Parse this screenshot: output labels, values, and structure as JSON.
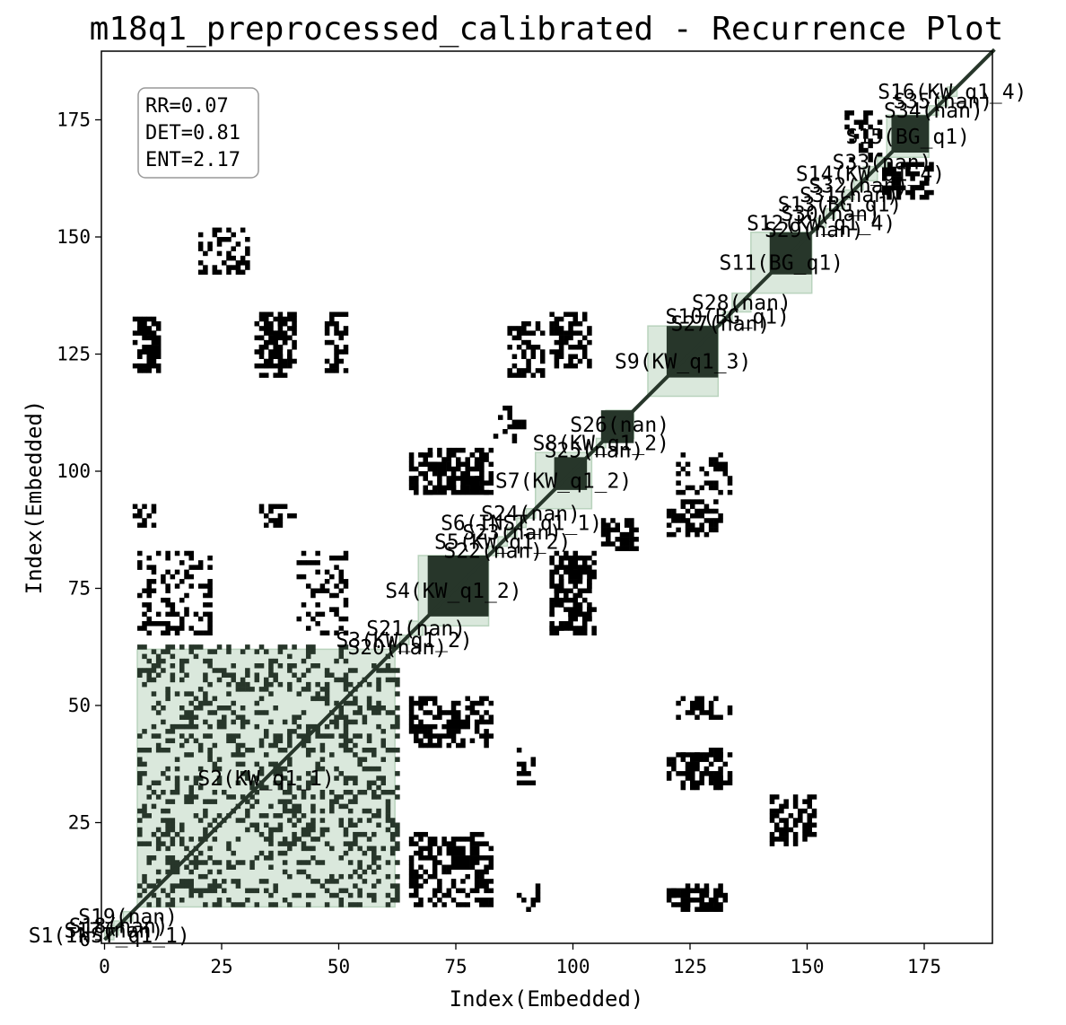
{
  "chart_data": {
    "type": "heatmap",
    "title": "m18q1_preprocessed_calibrated - Recurrence Plot",
    "xlabel": "Index(Embedded)",
    "ylabel": "Index(Embedded)",
    "xlim": [
      0,
      190
    ],
    "ylim": [
      0,
      190
    ],
    "x_ticks": [
      0,
      25,
      50,
      75,
      100,
      125,
      150,
      175
    ],
    "y_ticks": [
      0,
      25,
      50,
      75,
      100,
      125,
      150,
      175
    ],
    "stats": [
      "RR=0.07",
      "DET=0.81",
      "ENT=2.17"
    ],
    "colors": {
      "recurrence": "#000000",
      "segment_fill": "#d6e6d8",
      "segment_edge": "#b9d3bd",
      "segment_block": "#27362a"
    },
    "segments": [
      {
        "label": "S1(INST_q1_1)",
        "start": 0,
        "end": 2
      },
      {
        "label": "S17(nan)",
        "start": 1,
        "end": 3
      },
      {
        "label": "S18(nan)",
        "start": 2,
        "end": 4
      },
      {
        "label": "S19(nan)",
        "start": 4,
        "end": 6
      },
      {
        "label": "S2(KW_q1_1)",
        "start": 7,
        "end": 62
      },
      {
        "label": "S20(nan)",
        "start": 62,
        "end": 63
      },
      {
        "label": "S3(KW_q1_2)",
        "start": 63,
        "end": 65
      },
      {
        "label": "S21(nan)",
        "start": 65,
        "end": 68
      },
      {
        "label": "S4(KW_q1_2)",
        "start": 67,
        "end": 82
      },
      {
        "label": "S22(nan)",
        "start": 82,
        "end": 84
      },
      {
        "label": "S5(KW_q1_2)",
        "start": 84,
        "end": 86
      },
      {
        "label": "S23(nan)",
        "start": 86,
        "end": 88
      },
      {
        "label": "S6(INST_q1_1)",
        "start": 88,
        "end": 90
      },
      {
        "label": "S24(nan)",
        "start": 90,
        "end": 92
      },
      {
        "label": "S7(KW_q1_2)",
        "start": 92,
        "end": 104
      },
      {
        "label": "S25(nan)",
        "start": 104,
        "end": 105
      },
      {
        "label": "S8(KW_q1_2)",
        "start": 105,
        "end": 107
      },
      {
        "label": "S26(nan)",
        "start": 107,
        "end": 113
      },
      {
        "label": "S9(KW_q1_3)",
        "start": 116,
        "end": 131
      },
      {
        "label": "S27(nan)",
        "start": 131,
        "end": 132
      },
      {
        "label": "S10(BG_q1)",
        "start": 132,
        "end": 134
      },
      {
        "label": "S28(nan)",
        "start": 134,
        "end": 138
      },
      {
        "label": "S11(BG_q1)",
        "start": 138,
        "end": 151
      },
      {
        "label": "S29(nan)",
        "start": 151,
        "end": 152
      },
      {
        "label": "S12(KW_q1_4)",
        "start": 152,
        "end": 154
      },
      {
        "label": "S30(nan)",
        "start": 154,
        "end": 156
      },
      {
        "label": "S13(BG_q1)",
        "start": 156,
        "end": 158
      },
      {
        "label": "S31(nan)",
        "start": 158,
        "end": 160
      },
      {
        "label": "S32(nan)",
        "start": 160,
        "end": 162
      },
      {
        "label": "S14(KW_q1_4)",
        "start": 162,
        "end": 165
      },
      {
        "label": "S33(nan)",
        "start": 165,
        "end": 167
      },
      {
        "label": "S15(BG_q1)",
        "start": 167,
        "end": 176
      },
      {
        "label": "S34(nan)",
        "start": 176,
        "end": 178
      },
      {
        "label": "S35(nan)",
        "start": 178,
        "end": 180
      },
      {
        "label": "S16(KW_q1_4)",
        "start": 180,
        "end": 182
      }
    ],
    "dense_blocks": [
      {
        "x": [
          7,
          62
        ],
        "y": [
          7,
          62
        ]
      },
      {
        "x": [
          69,
          82
        ],
        "y": [
          69,
          82
        ]
      },
      {
        "x": [
          96,
          103
        ],
        "y": [
          96,
          103
        ]
      },
      {
        "x": [
          106,
          113
        ],
        "y": [
          106,
          113
        ]
      },
      {
        "x": [
          120,
          131
        ],
        "y": [
          120,
          131
        ]
      },
      {
        "x": [
          142,
          151
        ],
        "y": [
          142,
          151
        ]
      },
      {
        "x": [
          168,
          176
        ],
        "y": [
          168,
          176
        ]
      }
    ],
    "offdiagonal_clusters": [
      {
        "x": [
          6,
          11
        ],
        "y": [
          121,
          132
        ]
      },
      {
        "x": [
          6,
          11
        ],
        "y": [
          88,
          92
        ]
      },
      {
        "x": [
          33,
          40
        ],
        "y": [
          122,
          133
        ]
      },
      {
        "x": [
          33,
          40
        ],
        "y": [
          88,
          92
        ]
      },
      {
        "x": [
          47,
          51
        ],
        "y": [
          121,
          133
        ]
      },
      {
        "x": [
          65,
          82
        ],
        "y": [
          95,
          104
        ]
      },
      {
        "x": [
          65,
          82
        ],
        "y": [
          7,
          22
        ]
      },
      {
        "x": [
          65,
          82
        ],
        "y": [
          41,
          51
        ]
      },
      {
        "x": [
          95,
          103
        ],
        "y": [
          65,
          81
        ]
      },
      {
        "x": [
          95,
          103
        ],
        "y": [
          122,
          133
        ]
      },
      {
        "x": [
          106,
          113
        ],
        "y": [
          83,
          89
        ]
      },
      {
        "x": [
          120,
          131
        ],
        "y": [
          86,
          93
        ]
      },
      {
        "x": [
          120,
          131
        ],
        "y": [
          32,
          39
        ]
      },
      {
        "x": [
          120,
          131
        ],
        "y": [
          6,
          10
        ]
      },
      {
        "x": [
          142,
          151
        ],
        "y": [
          20,
          30
        ]
      },
      {
        "x": [
          166,
          176
        ],
        "y": [
          158,
          165
        ]
      }
    ]
  }
}
